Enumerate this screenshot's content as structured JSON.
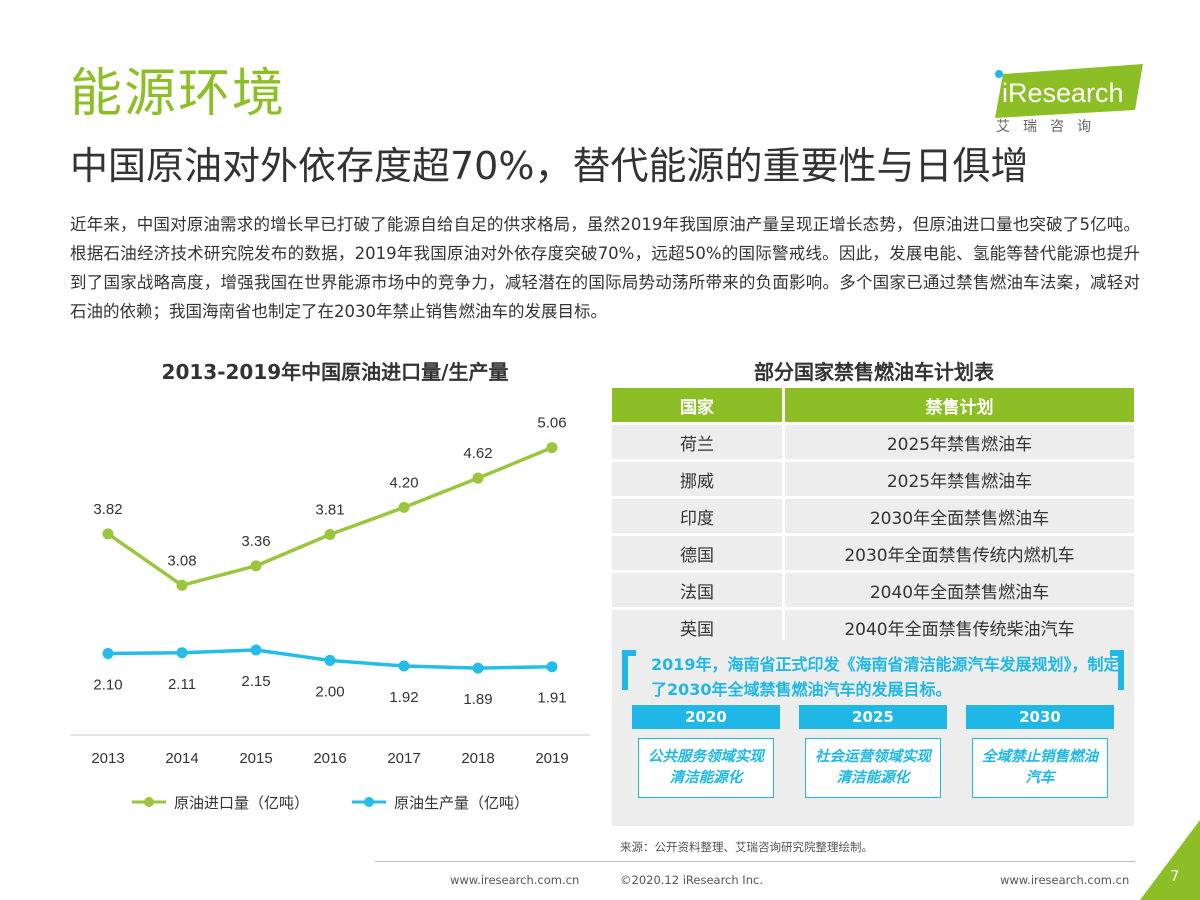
{
  "header": {
    "section_title": "能源环境",
    "page_title": "中国原油对外依存度超70%，替代能源的重要性与日俱增",
    "logo_text": "iResearch",
    "logo_cn": "艾瑞咨询"
  },
  "intro": "近年来，中国对原油需求的增长早已打破了能源自给自足的供求格局，虽然2019年我国原油产量呈现正增长态势，但原油进口量也突破了5亿吨。根据石油经济技术研究院发布的数据，2019年我国原油对外依存度突破70%，远超50%的国际警戒线。因此，发展电能、氢能等替代能源也提升到了国家战略高度，增强我国在世界能源市场中的竞争力，减轻潜在的国际局势动荡所带来的负面影响。多个国家已通过禁售燃油车法案，减轻对石油的依赖；我国海南省也制定了在2030年禁止销售燃油车的发展目标。",
  "chart_data": {
    "type": "line",
    "title": "2013-2019年中国原油进口量/生产量",
    "x": [
      "2013",
      "2014",
      "2015",
      "2016",
      "2017",
      "2018",
      "2019"
    ],
    "series": [
      {
        "name": "原油进口量（亿吨）",
        "values": [
          3.82,
          3.08,
          3.36,
          3.81,
          4.2,
          4.62,
          5.06
        ],
        "labels": [
          "3.82",
          "3.08",
          "3.36",
          "3.81",
          "4.20",
          "4.62",
          "5.06"
        ],
        "color": "#9bc53d"
      },
      {
        "name": "原油生产量（亿吨）",
        "values": [
          2.1,
          2.11,
          2.15,
          2.0,
          1.92,
          1.89,
          1.91
        ],
        "labels": [
          "2.10",
          "2.11",
          "2.15",
          "2.00",
          "1.92",
          "1.89",
          "1.91"
        ],
        "color": "#22bde9"
      }
    ],
    "ylim": [
      0,
      6
    ],
    "grid": false,
    "legend": "bottom"
  },
  "table": {
    "title": "部分国家禁售燃油车计划表",
    "headers": [
      "国家",
      "禁售计划"
    ],
    "rows": [
      [
        "荷兰",
        "2025年禁售燃油车"
      ],
      [
        "挪威",
        "2025年禁售燃油车"
      ],
      [
        "印度",
        "2030年全面禁售燃油车"
      ],
      [
        "德国",
        "2030年全面禁售传统内燃机车"
      ],
      [
        "法国",
        "2040年全面禁售燃油车"
      ],
      [
        "英国",
        "2040年全面禁售传统柴油汽车"
      ]
    ]
  },
  "callout": {
    "text": "2019年，海南省正式印发《海南省清洁能源汽车发展规划》，制定了2030年全域禁售燃油汽车的发展目标。",
    "years": [
      "2020",
      "2025",
      "2030"
    ],
    "goals": [
      "公共服务领域实现清洁能源化",
      "社会运营领域实现清洁能源化",
      "全域禁止销售燃油汽车"
    ]
  },
  "source": "来源：公开资料整理、艾瑞咨询研究院整理绘制。",
  "footer": {
    "url_left": "www.iresearch.com.cn",
    "copyright": "©2020.12 iResearch Inc.",
    "url_right": "www.iresearch.com.cn",
    "page_number": "7"
  },
  "colors": {
    "brand_green": "#8cbf26",
    "accent_blue": "#1fb8e6",
    "import_line": "#9bc53d",
    "production_line": "#22bde9"
  }
}
